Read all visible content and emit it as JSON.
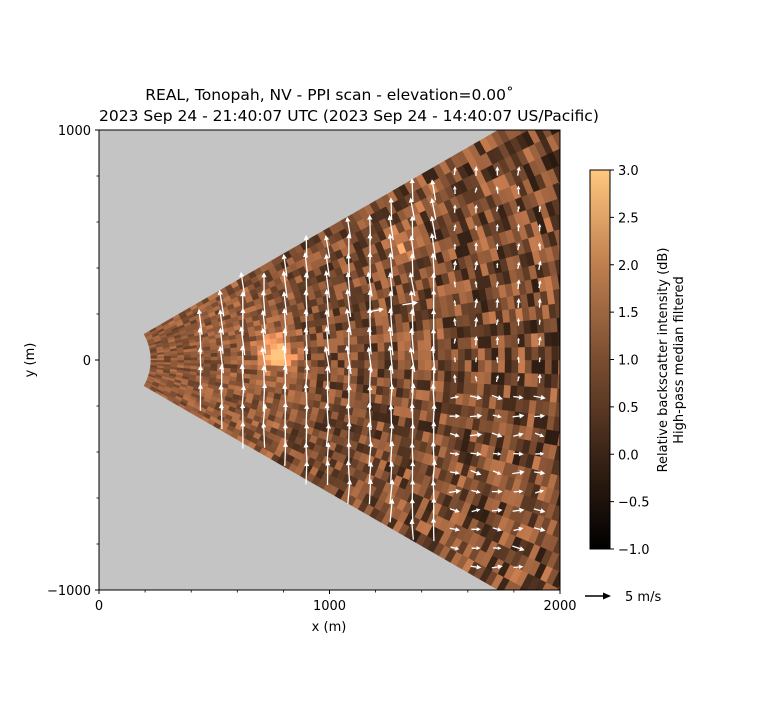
{
  "chart_data": {
    "type": "heatmap",
    "title": "REAL, Tonopah, NV - PPI scan - elevation=0.00˚",
    "subtitle": "2023 Sep 24 - 21:40:07 UTC (2023 Sep 24 - 14:40:07 US/Pacific)",
    "xlabel": "x (m)",
    "ylabel": "y (m)",
    "xlim": [
      0,
      2000
    ],
    "ylim": [
      -1000,
      1000
    ],
    "x_ticks": [
      0,
      1000,
      2000
    ],
    "x_tick_labels": [
      "0",
      "1000",
      "2000"
    ],
    "y_ticks": [
      -1000,
      0,
      1000
    ],
    "y_tick_labels": [
      "−1000",
      "0",
      "1000"
    ],
    "colorbar": {
      "label_line1": "Relative backscatter intensity (dB)",
      "label_line2": "High-pass median filtered",
      "range": [
        -1.0,
        3.0
      ],
      "ticks": [
        -1.0,
        -0.5,
        0.0,
        0.5,
        1.0,
        1.5,
        2.0,
        2.5,
        3.0
      ],
      "tick_labels": [
        "−1.0",
        "−0.5",
        "0.0",
        "0.5",
        "1.0",
        "1.5",
        "2.0",
        "2.5",
        "3.0"
      ],
      "colormap": "copper",
      "color_low": "#000000",
      "color_high": "#ffc77f"
    },
    "scan": {
      "min_range_m": 225,
      "max_range_m": 2000,
      "half_angle_deg": 30,
      "background_color": "#c4c4c4"
    },
    "quiver_key": {
      "label": "5 m/s",
      "magnitude": 5
    },
    "wind_vectors": {
      "near_field": {
        "x_from": 380,
        "x_to": 1500,
        "direction": "northward",
        "typical_speed_ms": 5
      },
      "far_field_north": {
        "x_from": 1500,
        "x_to": 2000,
        "direction": "northward",
        "typical_speed_ms": 1.5
      },
      "far_field_south": {
        "x_from": 1500,
        "x_to": 2000,
        "direction": "eastward",
        "typical_speed_ms": 2
      }
    }
  }
}
